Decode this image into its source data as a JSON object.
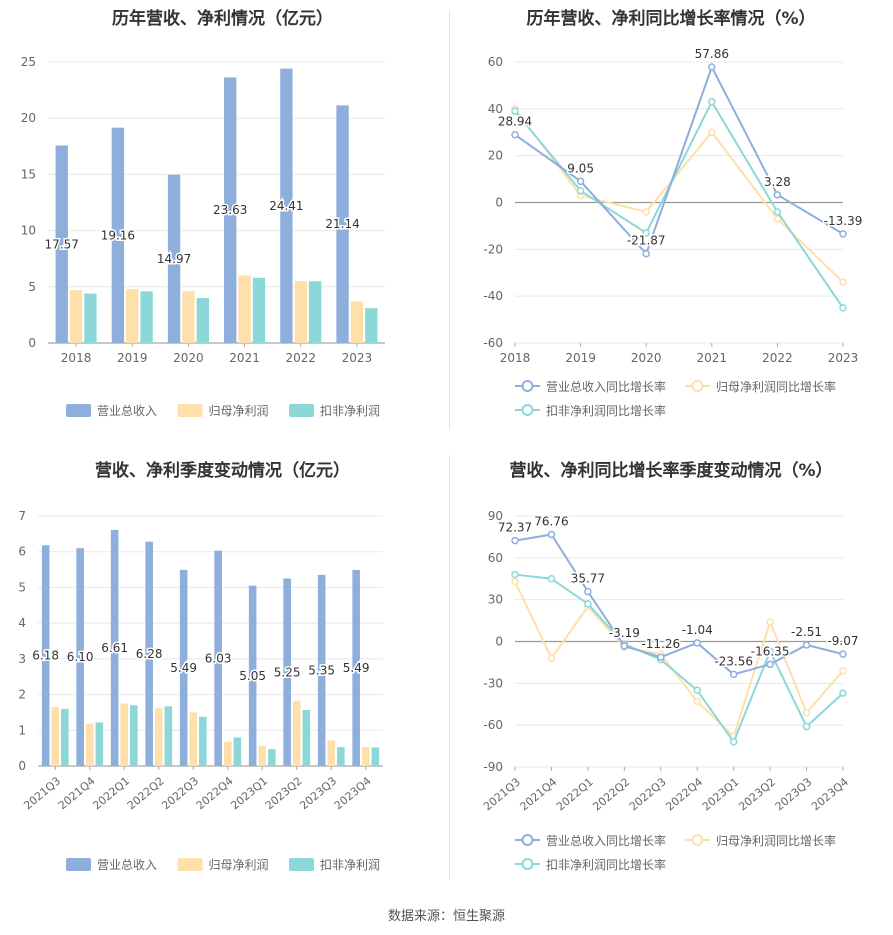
{
  "colors": {
    "revenue": "#8eaedc",
    "net": "#ffdfaa",
    "deduct": "#8cd8d8",
    "axis": "#aaaaaa",
    "grid": "#e8e8e8",
    "text": "#666666"
  },
  "source": "数据来源：恒生聚源",
  "chart_data": [
    {
      "type": "bar",
      "title": "历年营收、净利情况（亿元）",
      "categories": [
        "2018",
        "2019",
        "2020",
        "2021",
        "2022",
        "2023"
      ],
      "ylim": [
        0,
        25
      ],
      "yticks": [
        0,
        5,
        10,
        15,
        20,
        25
      ],
      "grid": true,
      "legend_position": "bottom",
      "series": [
        {
          "name": "营业总收入",
          "values": [
            17.57,
            19.16,
            14.97,
            23.63,
            24.41,
            21.14
          ],
          "show_labels": true
        },
        {
          "name": "归母净利润",
          "values": [
            4.7,
            4.8,
            4.6,
            6.0,
            5.5,
            3.7
          ],
          "show_labels": false
        },
        {
          "name": "扣非净利润",
          "values": [
            4.4,
            4.6,
            4.0,
            5.8,
            5.5,
            3.1
          ],
          "show_labels": false
        }
      ]
    },
    {
      "type": "line",
      "title": "历年营收、净利同比增长率情况（%）",
      "categories": [
        "2018",
        "2019",
        "2020",
        "2021",
        "2022",
        "2023"
      ],
      "ylim": [
        -60,
        60
      ],
      "yticks": [
        -60,
        -40,
        -20,
        0,
        20,
        40,
        60
      ],
      "grid": true,
      "legend_position": "bottom",
      "series": [
        {
          "name": "营业总收入同比增长率",
          "values": [
            28.94,
            9.05,
            -21.87,
            57.86,
            3.28,
            -13.39
          ],
          "show_labels": true
        },
        {
          "name": "归母净利润同比增长率",
          "values": [
            40,
            3,
            -4,
            30,
            -7,
            -34
          ],
          "show_labels": false
        },
        {
          "name": "扣非净利润同比增长率",
          "values": [
            39,
            5,
            -13,
            43,
            -4,
            -45
          ],
          "show_labels": false
        }
      ]
    },
    {
      "type": "bar",
      "title": "营收、净利季度变动情况（亿元）",
      "categories": [
        "2021Q3",
        "2021Q4",
        "2022Q1",
        "2022Q2",
        "2022Q3",
        "2022Q4",
        "2023Q1",
        "2023Q2",
        "2023Q3",
        "2023Q4"
      ],
      "ylim": [
        0,
        7
      ],
      "yticks": [
        0,
        1,
        2,
        3,
        4,
        5,
        6,
        7
      ],
      "grid": true,
      "legend_position": "bottom",
      "series": [
        {
          "name": "营业总收入",
          "values": [
            6.18,
            6.1,
            6.61,
            6.28,
            5.49,
            6.03,
            5.05,
            5.25,
            5.35,
            5.49
          ],
          "show_labels": true
        },
        {
          "name": "归母净利润",
          "values": [
            1.65,
            1.18,
            1.75,
            1.62,
            1.5,
            0.68,
            0.57,
            1.83,
            0.72,
            0.53
          ],
          "show_labels": false
        },
        {
          "name": "扣非净利润",
          "values": [
            1.6,
            1.22,
            1.7,
            1.67,
            1.38,
            0.8,
            0.47,
            1.57,
            0.53,
            0.52
          ],
          "show_labels": false
        }
      ]
    },
    {
      "type": "line",
      "title": "营收、净利同比增长率季度变动情况（%）",
      "categories": [
        "2021Q3",
        "2021Q4",
        "2022Q1",
        "2022Q2",
        "2022Q3",
        "2022Q4",
        "2023Q1",
        "2023Q2",
        "2023Q3",
        "2023Q4"
      ],
      "ylim": [
        -90,
        90
      ],
      "yticks": [
        -90,
        -60,
        -30,
        0,
        30,
        60,
        90
      ],
      "grid": true,
      "legend_position": "bottom",
      "series": [
        {
          "name": "营业总收入同比增长率",
          "values": [
            72.37,
            76.76,
            35.77,
            -3.19,
            -11.26,
            -1.04,
            -23.56,
            -16.35,
            -2.51,
            -9.07
          ],
          "show_labels": true
        },
        {
          "name": "归母净利润同比增长率",
          "values": [
            43,
            -12,
            25,
            -4,
            -9,
            -43,
            -68,
            14,
            -51,
            -21
          ],
          "show_labels": false
        },
        {
          "name": "扣非净利润同比增长率",
          "values": [
            48,
            45,
            27,
            -2,
            -13,
            -35,
            -72,
            -7,
            -61,
            -37
          ],
          "show_labels": false
        }
      ]
    }
  ]
}
